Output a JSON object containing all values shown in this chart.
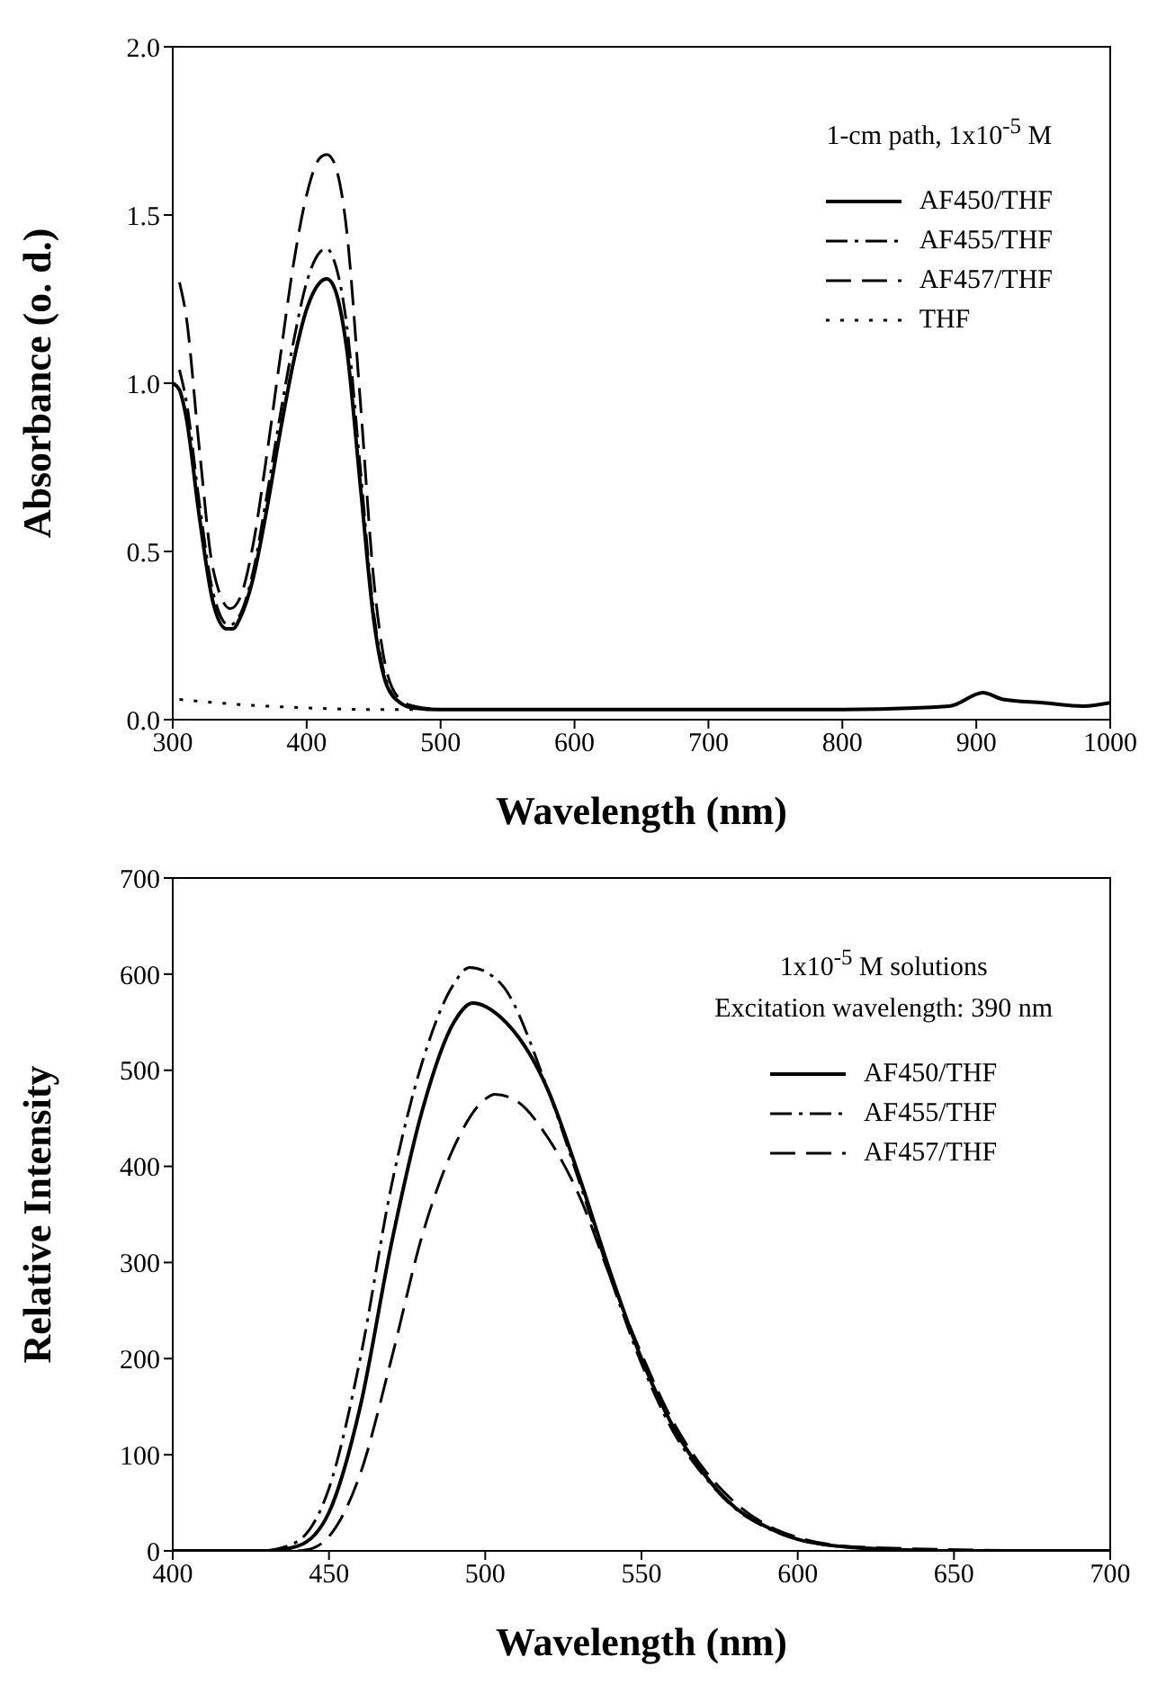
{
  "chart_data": [
    {
      "type": "line",
      "xlabel": "Wavelength (nm)",
      "ylabel": "Absorbance (o. d.)",
      "xlim": [
        300,
        1000
      ],
      "xticks": [
        300,
        400,
        500,
        600,
        700,
        800,
        900,
        1000
      ],
      "ylim": [
        0,
        2
      ],
      "yticks": [
        {
          "value": 0,
          "label": "0.0"
        },
        0.5,
        {
          "value": 1,
          "label": "1.0"
        },
        1.5,
        {
          "value": 2,
          "label": "2.0"
        }
      ],
      "legend": "top right",
      "marker": "none",
      "annotations": [
        "1-cm path, 1x10$^{-5}$ M"
      ],
      "series": [
        {
          "name": "AF450/THF",
          "color": "#000000",
          "line_style": "solid",
          "x": [
            300,
            305,
            310,
            320,
            330,
            340,
            345,
            350,
            360,
            370,
            380,
            390,
            400,
            410,
            415,
            420,
            430,
            440,
            450,
            460,
            470,
            480,
            500,
            600,
            700,
            800,
            880,
            905,
            920,
            950,
            980,
            1000
          ],
          "values": [
            1.0,
            0.98,
            0.9,
            0.6,
            0.35,
            0.27,
            0.27,
            0.3,
            0.42,
            0.62,
            0.85,
            1.06,
            1.22,
            1.3,
            1.31,
            1.29,
            1.1,
            0.7,
            0.3,
            0.1,
            0.05,
            0.035,
            0.03,
            0.03,
            0.03,
            0.03,
            0.04,
            0.08,
            0.06,
            0.05,
            0.04,
            0.05
          ]
        },
        {
          "name": "AF455/THF",
          "color": "#000000",
          "line_style": "dashdot",
          "x": [
            305,
            310,
            320,
            330,
            342,
            350,
            360,
            370,
            380,
            390,
            400,
            410,
            415,
            420,
            430,
            440,
            450,
            460,
            470,
            480,
            500
          ],
          "values": [
            1.04,
            0.95,
            0.64,
            0.38,
            0.28,
            0.31,
            0.44,
            0.66,
            0.9,
            1.12,
            1.3,
            1.39,
            1.4,
            1.37,
            1.17,
            0.75,
            0.32,
            0.11,
            0.05,
            0.035,
            0.03
          ]
        },
        {
          "name": "AF457/THF",
          "color": "#000000",
          "line_style": "dashed",
          "x": [
            305,
            310,
            320,
            330,
            343,
            350,
            360,
            370,
            380,
            390,
            400,
            410,
            415,
            420,
            430,
            440,
            450,
            460,
            470,
            480,
            500
          ],
          "values": [
            1.3,
            1.2,
            0.8,
            0.45,
            0.33,
            0.36,
            0.52,
            0.78,
            1.07,
            1.35,
            1.56,
            1.67,
            1.68,
            1.66,
            1.45,
            0.95,
            0.42,
            0.14,
            0.06,
            0.04,
            0.03
          ]
        },
        {
          "name": "THF",
          "color": "#000000",
          "line_style": "dotted",
          "x": [
            305,
            350,
            400,
            450,
            480
          ],
          "values": [
            0.06,
            0.045,
            0.035,
            0.03,
            0.03
          ]
        }
      ]
    },
    {
      "type": "line",
      "xlabel": "Wavelength (nm)",
      "ylabel": "Relative Intensity",
      "xlim": [
        400,
        700
      ],
      "xticks": [
        400,
        450,
        500,
        550,
        600,
        650,
        700
      ],
      "ylim": [
        0,
        700
      ],
      "yticks": [
        0,
        100,
        200,
        300,
        400,
        500,
        600,
        700
      ],
      "legend": "top right",
      "marker": "none",
      "annotations": [
        "1x10$^{-5}$ M  solutions",
        "Excitation wavelength: 390 nm"
      ],
      "series": [
        {
          "name": "AF450/THF",
          "color": "#000000",
          "line_style": "solid",
          "x": [
            400,
            430,
            440,
            450,
            460,
            470,
            480,
            490,
            496,
            505,
            520,
            530,
            540,
            550,
            560,
            570,
            580,
            590,
            600,
            620,
            650,
            700
          ],
          "values": [
            0,
            0,
            5,
            40,
            150,
            320,
            460,
            550,
            570,
            555,
            480,
            390,
            290,
            200,
            130,
            80,
            45,
            25,
            12,
            3,
            0,
            0
          ]
        },
        {
          "name": "AF455/THF",
          "color": "#000000",
          "line_style": "dashdot",
          "x": [
            430,
            440,
            450,
            460,
            470,
            480,
            490,
            495,
            505,
            520,
            530,
            540,
            550,
            560,
            570,
            580,
            590,
            600,
            620,
            650
          ],
          "values": [
            0,
            10,
            65,
            200,
            380,
            510,
            590,
            607,
            590,
            480,
            385,
            285,
            195,
            125,
            78,
            44,
            24,
            12,
            3,
            0
          ]
        },
        {
          "name": "AF457/THF",
          "color": "#000000",
          "line_style": "dashed",
          "x": [
            440,
            445,
            450,
            460,
            470,
            480,
            490,
            500,
            503,
            510,
            520,
            530,
            540,
            550,
            560,
            570,
            580,
            590,
            600,
            620,
            680
          ],
          "values": [
            0,
            3,
            15,
            80,
            200,
            330,
            420,
            470,
            475,
            468,
            430,
            370,
            285,
            205,
            135,
            85,
            50,
            27,
            14,
            4,
            0
          ]
        }
      ]
    }
  ]
}
